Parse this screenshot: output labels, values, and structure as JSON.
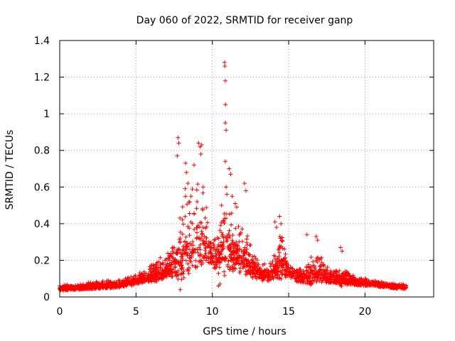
{
  "chart_data": {
    "type": "scatter",
    "title": "Day 060 of 2022, SRMTID for receiver ganp",
    "xlabel": "GPS time / hours",
    "ylabel": "SRMTID / TECUs",
    "xlim": [
      0,
      24.5
    ],
    "ylim": [
      0,
      1.4
    ],
    "x_ticks": [
      0,
      5,
      10,
      15,
      20
    ],
    "x_tick_labels": [
      "0",
      "5",
      "10",
      "15",
      "20"
    ],
    "y_ticks": [
      0,
      0.2,
      0.4,
      0.6,
      0.8,
      1.0,
      1.2,
      1.4
    ],
    "y_tick_labels": [
      "0",
      "0.2",
      "0.4",
      "0.6",
      "0.8",
      "1",
      "1.2",
      "1.4"
    ],
    "grid": true,
    "marker": "+",
    "color": "#ff0000",
    "series": [
      {
        "name": "SRMTID",
        "envelope": {
          "x": [
            0,
            1,
            2,
            3,
            4,
            5,
            5.5,
            6,
            6.5,
            7,
            7.5,
            8,
            8.5,
            9,
            9.5,
            10,
            10.5,
            11,
            11.5,
            12,
            12.5,
            13,
            13.5,
            14,
            14.5,
            15,
            15.5,
            16,
            16.5,
            17,
            17.5,
            18,
            18.5,
            19,
            19.5,
            20,
            21,
            22,
            22.7
          ],
          "base": [
            0.04,
            0.045,
            0.05,
            0.055,
            0.06,
            0.08,
            0.09,
            0.1,
            0.11,
            0.13,
            0.15,
            0.19,
            0.22,
            0.24,
            0.24,
            0.2,
            0.18,
            0.2,
            0.2,
            0.18,
            0.14,
            0.12,
            0.1,
            0.12,
            0.15,
            0.12,
            0.1,
            0.09,
            0.1,
            0.11,
            0.1,
            0.09,
            0.08,
            0.08,
            0.07,
            0.07,
            0.06,
            0.05,
            0.05
          ],
          "spread": [
            0.02,
            0.02,
            0.025,
            0.03,
            0.03,
            0.04,
            0.05,
            0.06,
            0.08,
            0.08,
            0.15,
            0.35,
            0.3,
            0.35,
            0.25,
            0.1,
            0.25,
            0.3,
            0.2,
            0.2,
            0.12,
            0.08,
            0.06,
            0.08,
            0.18,
            0.08,
            0.06,
            0.05,
            0.12,
            0.1,
            0.08,
            0.05,
            0.08,
            0.04,
            0.03,
            0.03,
            0.02,
            0.02,
            0.02
          ]
        },
        "n_points": 2400,
        "peaks": [
          {
            "x": 7.75,
            "y": 0.87
          },
          {
            "x": 7.8,
            "y": 0.84
          },
          {
            "x": 7.7,
            "y": 0.77
          },
          {
            "x": 8.25,
            "y": 0.73
          },
          {
            "x": 8.3,
            "y": 0.68
          },
          {
            "x": 8.4,
            "y": 0.62
          },
          {
            "x": 8.6,
            "y": 0.55
          },
          {
            "x": 8.8,
            "y": 0.72
          },
          {
            "x": 9.1,
            "y": 0.84
          },
          {
            "x": 9.2,
            "y": 0.82
          },
          {
            "x": 9.3,
            "y": 0.83
          },
          {
            "x": 9.25,
            "y": 0.78
          },
          {
            "x": 9.4,
            "y": 0.6
          },
          {
            "x": 9.0,
            "y": 0.52
          },
          {
            "x": 10.8,
            "y": 1.28
          },
          {
            "x": 10.82,
            "y": 1.26
          },
          {
            "x": 10.85,
            "y": 1.18
          },
          {
            "x": 10.86,
            "y": 1.05
          },
          {
            "x": 10.85,
            "y": 0.95
          },
          {
            "x": 10.9,
            "y": 0.91
          },
          {
            "x": 10.85,
            "y": 0.74
          },
          {
            "x": 10.9,
            "y": 0.6
          },
          {
            "x": 10.95,
            "y": 0.56
          },
          {
            "x": 11.1,
            "y": 0.7
          },
          {
            "x": 11.2,
            "y": 0.67
          },
          {
            "x": 11.3,
            "y": 0.55
          },
          {
            "x": 11.5,
            "y": 0.51
          },
          {
            "x": 11.6,
            "y": 0.49
          },
          {
            "x": 12.1,
            "y": 0.62
          },
          {
            "x": 12.2,
            "y": 0.58
          },
          {
            "x": 14.1,
            "y": 0.41
          },
          {
            "x": 14.2,
            "y": 0.38
          },
          {
            "x": 14.4,
            "y": 0.44
          },
          {
            "x": 14.5,
            "y": 0.4
          },
          {
            "x": 16.2,
            "y": 0.34
          },
          {
            "x": 16.8,
            "y": 0.33
          },
          {
            "x": 16.9,
            "y": 0.31
          },
          {
            "x": 18.4,
            "y": 0.27
          },
          {
            "x": 18.5,
            "y": 0.25
          },
          {
            "x": 7.9,
            "y": 0.04
          },
          {
            "x": 10.4,
            "y": 0.06
          },
          {
            "x": 10.5,
            "y": 0.07
          }
        ]
      }
    ]
  }
}
